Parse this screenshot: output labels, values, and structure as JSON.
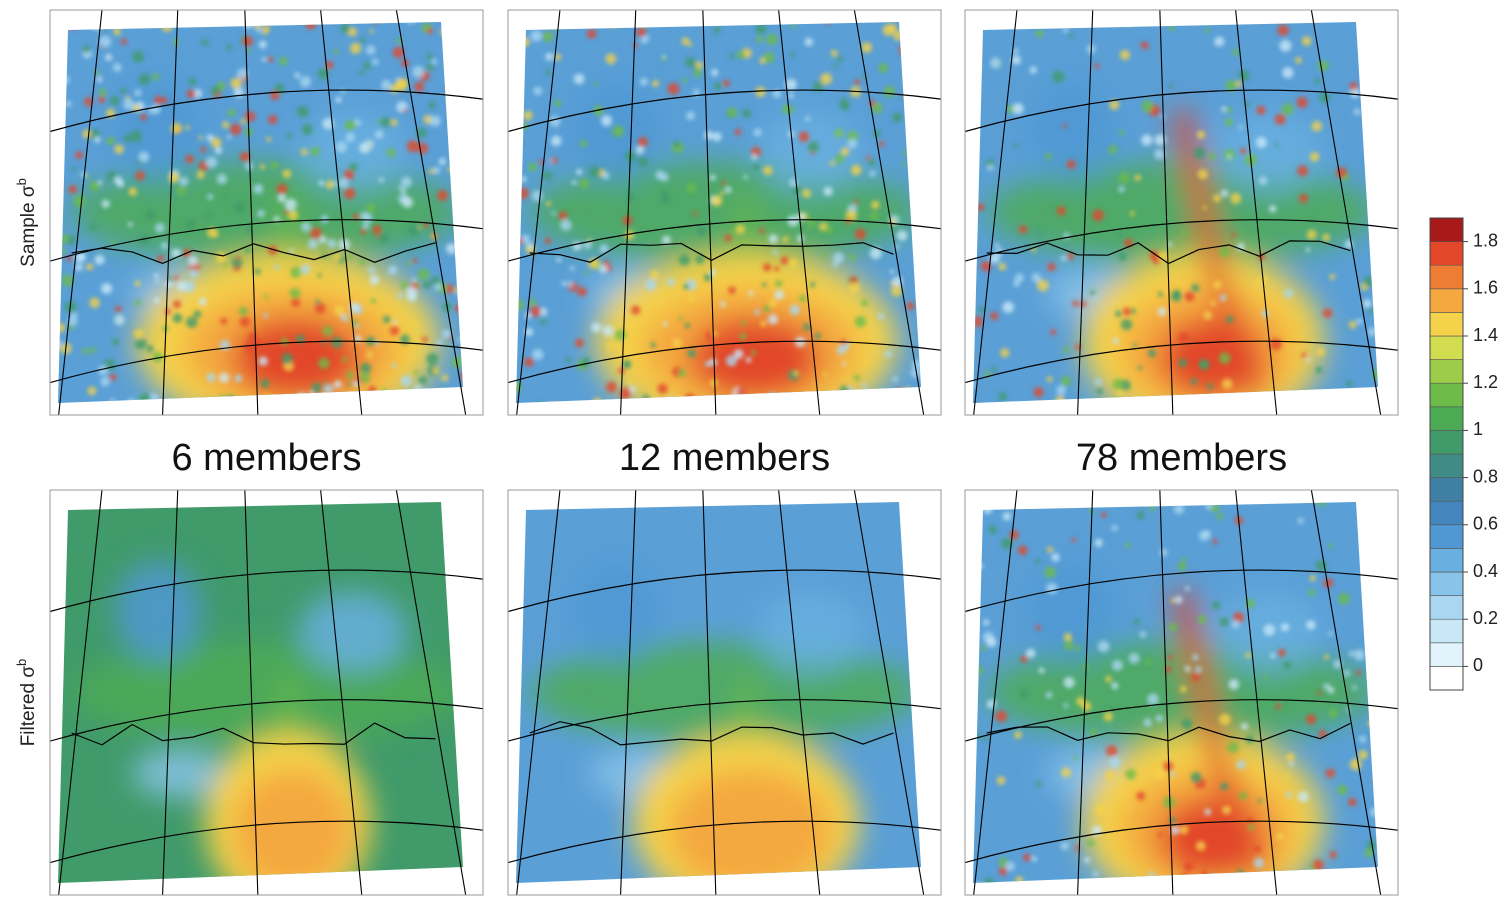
{
  "columns": [
    "6 members",
    "12 members",
    "78 members"
  ],
  "rows": [
    {
      "text": "Sample σ",
      "sup": "b"
    },
    {
      "text": "Filtered σ",
      "sup": "b"
    }
  ],
  "colorbar": {
    "lim": [
      -0.1,
      1.9
    ],
    "ticks": [
      0,
      0.2,
      0.4,
      0.6,
      0.8,
      1,
      1.2,
      1.4,
      1.6,
      1.8
    ],
    "colors": [
      "#ffffff",
      "#e2f3fb",
      "#c9e8f7",
      "#a9d7f1",
      "#88c4ea",
      "#69afe0",
      "#4f98d3",
      "#4385bd",
      "#3f7fa3",
      "#3f8b86",
      "#409a6a",
      "#4caa55",
      "#6dbb49",
      "#9ccc49",
      "#d2dc4f",
      "#f4d24a",
      "#f4a83f",
      "#ee7d34",
      "#e2472a",
      "#a81a1a"
    ]
  }
}
